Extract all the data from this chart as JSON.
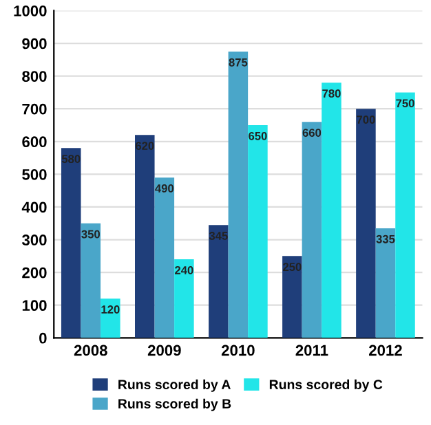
{
  "chart_data": {
    "type": "bar",
    "categories": [
      "2008",
      "2009",
      "2010",
      "2011",
      "2012"
    ],
    "series": [
      {
        "name": "Runs scored by A",
        "color": "#1f3e7a",
        "values": [
          580,
          620,
          345,
          250,
          700
        ]
      },
      {
        "name": "Runs scored by B",
        "color": "#4aa6c9",
        "values": [
          350,
          490,
          875,
          660,
          335
        ]
      },
      {
        "name": "Runs scored by C",
        "color": "#22e5e8",
        "values": [
          120,
          240,
          650,
          780,
          750
        ]
      }
    ],
    "ylim": [
      0,
      1000
    ],
    "yticks": [
      0,
      100,
      200,
      300,
      400,
      500,
      600,
      700,
      800,
      900,
      1000
    ],
    "grid": "y",
    "legend": "bottom",
    "data_labels": true
  }
}
